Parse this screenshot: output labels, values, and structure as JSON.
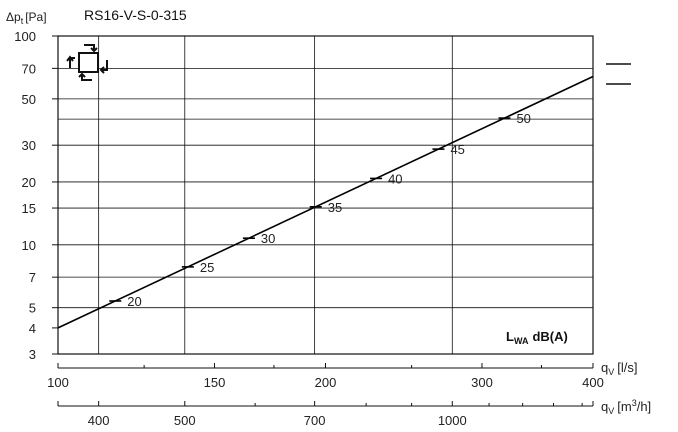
{
  "chart_data": {
    "type": "line",
    "title": "RS16-V-S-0-315",
    "ylabel": "Δp",
    "ylabel_sub": "t",
    "ylabel_unit": "[Pa]",
    "y_scale": "log",
    "ylim": [
      3,
      100
    ],
    "y_ticks": [
      3,
      4,
      5,
      7,
      10,
      15,
      20,
      30,
      50,
      70,
      100
    ],
    "y_gridlines": [
      5,
      7,
      10,
      15,
      20,
      30,
      40,
      50,
      70
    ],
    "x_scale": "log",
    "xlim_ls": [
      100,
      400
    ],
    "x_ticks_ls": [
      100,
      150,
      200,
      300,
      400
    ],
    "x_minor_ls": [
      125,
      175,
      250,
      350
    ],
    "xlabel_ls": "q",
    "xlabel_ls_sub": "V",
    "xlabel_ls_unit": "[l/s]",
    "x_ticks_m3h": [
      400,
      500,
      700,
      1000
    ],
    "x_minor_m3h": [
      600,
      800,
      900,
      1100,
      1200,
      1300,
      1400
    ],
    "xlabel_m3h": "q",
    "xlabel_m3h_sub": "V",
    "xlabel_m3h_unit_pre": "[m",
    "xlabel_m3h_unit_sup": "3",
    "xlabel_m3h_unit_post": "/h]",
    "x_gridlines_m3h": [
      400,
      500,
      700,
      1000
    ],
    "series": [
      {
        "values_x_ls": [
          100,
          400
        ],
        "values_y": [
          4.0,
          64.0
        ]
      }
    ],
    "noise_marks": [
      {
        "x_ls": 116,
        "label": "20"
      },
      {
        "x_ls": 140,
        "label": "25"
      },
      {
        "x_ls": 164,
        "label": "30"
      },
      {
        "x_ls": 195,
        "label": "35"
      },
      {
        "x_ls": 228,
        "label": "40"
      },
      {
        "x_ls": 268,
        "label": "45"
      },
      {
        "x_ls": 318,
        "label": "50"
      }
    ],
    "annotation_main": "L",
    "annotation_sub": "WA",
    "annotation_unit": "dB(A)",
    "legend_marks": 2
  }
}
